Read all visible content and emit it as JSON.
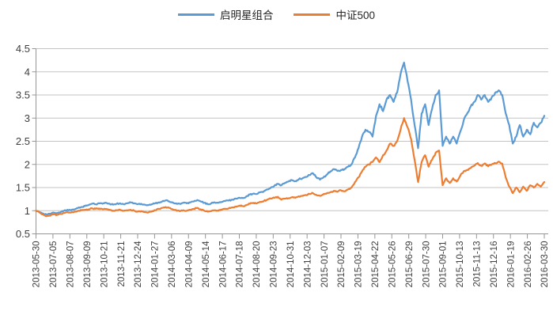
{
  "chart_data": {
    "type": "line",
    "title": "",
    "xlabel": "",
    "ylabel": "",
    "ylim": [
      0.5,
      4.5
    ],
    "ytick_step": 0.5,
    "grid": true,
    "legend_position": "top",
    "y_tick_labels": [
      "0.5",
      "1",
      "1.5",
      "2",
      "2.5",
      "3",
      "3.5",
      "4",
      "4.5"
    ],
    "x_labels": [
      "2013-05-30",
      "2013-07-05",
      "2013-08-07",
      "2013-09-09",
      "2013-10-21",
      "2013-11-21",
      "2013-12-24",
      "2014-01-27",
      "2014-03-06",
      "2014-04-09",
      "2014-05-14",
      "2014-06-17",
      "2014-07-18",
      "2014-08-20",
      "2014-09-23",
      "2014-10-31",
      "2014-12-03",
      "2015-01-07",
      "2015-02-09",
      "2015-03-19",
      "2015-04-22",
      "2015-05-26",
      "2015-06-29",
      "2015-07-30",
      "2015-09-01",
      "2015-10-13",
      "2015-11-13",
      "2015-12-16",
      "2016-01-19",
      "2016-02-26",
      "2016-03-30"
    ],
    "series": [
      {
        "name": "启明星组合",
        "color": "#5B9BD5",
        "values": [
          1.0,
          0.97,
          0.94,
          0.92,
          0.93,
          0.96,
          0.95,
          0.97,
          1.0,
          1.02,
          1.01,
          1.03,
          1.06,
          1.08,
          1.1,
          1.12,
          1.15,
          1.14,
          1.16,
          1.15,
          1.17,
          1.15,
          1.13,
          1.15,
          1.16,
          1.14,
          1.16,
          1.18,
          1.16,
          1.14,
          1.15,
          1.13,
          1.12,
          1.14,
          1.16,
          1.18,
          1.2,
          1.22,
          1.2,
          1.18,
          1.16,
          1.15,
          1.17,
          1.16,
          1.18,
          1.2,
          1.23,
          1.2,
          1.17,
          1.14,
          1.16,
          1.18,
          1.17,
          1.19,
          1.21,
          1.22,
          1.24,
          1.26,
          1.28,
          1.27,
          1.31,
          1.35,
          1.37,
          1.36,
          1.4,
          1.42,
          1.46,
          1.5,
          1.54,
          1.58,
          1.55,
          1.6,
          1.63,
          1.66,
          1.64,
          1.68,
          1.7,
          1.73,
          1.77,
          1.81,
          1.72,
          1.67,
          1.72,
          1.78,
          1.85,
          1.9,
          1.86,
          1.88,
          1.9,
          1.95,
          2.0,
          2.15,
          2.35,
          2.6,
          2.75,
          2.7,
          2.6,
          3.05,
          3.3,
          3.15,
          3.4,
          3.5,
          3.35,
          3.55,
          3.95,
          4.2,
          3.8,
          3.4,
          2.85,
          2.35,
          3.1,
          3.3,
          2.85,
          3.2,
          3.5,
          3.6,
          2.4,
          2.6,
          2.45,
          2.6,
          2.45,
          2.7,
          2.95,
          3.1,
          3.25,
          3.35,
          3.5,
          3.4,
          3.5,
          3.35,
          3.45,
          3.55,
          3.6,
          3.5,
          3.1,
          2.85,
          2.45,
          2.6,
          2.85,
          2.6,
          2.75,
          2.65,
          2.9,
          2.8,
          2.9,
          3.05
        ]
      },
      {
        "name": "中证500",
        "color": "#ED7D31",
        "values": [
          1.0,
          0.96,
          0.92,
          0.88,
          0.89,
          0.92,
          0.91,
          0.93,
          0.95,
          0.97,
          0.96,
          0.98,
          1.0,
          1.01,
          1.02,
          1.03,
          1.05,
          1.04,
          1.05,
          1.03,
          1.04,
          1.02,
          1.0,
          1.01,
          1.02,
          1.0,
          1.01,
          1.02,
          1.0,
          0.98,
          0.99,
          0.97,
          0.96,
          0.98,
          1.01,
          1.04,
          1.06,
          1.08,
          1.06,
          1.03,
          1.01,
          0.99,
          1.01,
          1.0,
          1.02,
          1.04,
          1.06,
          1.03,
          1.0,
          0.98,
          0.99,
          1.01,
          1.0,
          1.02,
          1.04,
          1.05,
          1.07,
          1.09,
          1.11,
          1.1,
          1.12,
          1.15,
          1.17,
          1.16,
          1.19,
          1.21,
          1.24,
          1.26,
          1.28,
          1.3,
          1.24,
          1.26,
          1.27,
          1.29,
          1.28,
          1.31,
          1.32,
          1.34,
          1.36,
          1.38,
          1.34,
          1.32,
          1.36,
          1.38,
          1.4,
          1.43,
          1.41,
          1.44,
          1.42,
          1.46,
          1.5,
          1.62,
          1.72,
          1.85,
          1.95,
          2.0,
          2.05,
          2.15,
          2.05,
          2.2,
          2.3,
          2.45,
          2.4,
          2.5,
          2.75,
          3.0,
          2.8,
          2.55,
          2.1,
          1.62,
          2.05,
          2.2,
          1.95,
          2.1,
          2.25,
          2.3,
          1.55,
          1.7,
          1.6,
          1.7,
          1.63,
          1.75,
          1.85,
          1.88,
          1.92,
          1.97,
          2.03,
          1.97,
          2.02,
          1.96,
          2.0,
          2.03,
          2.06,
          2.02,
          1.72,
          1.52,
          1.38,
          1.5,
          1.4,
          1.52,
          1.43,
          1.55,
          1.5,
          1.58,
          1.52,
          1.62
        ]
      }
    ],
    "colors": {
      "gridline": "#c3c3c3",
      "axis": "#969696",
      "label_text": "#3f3f3f"
    }
  }
}
